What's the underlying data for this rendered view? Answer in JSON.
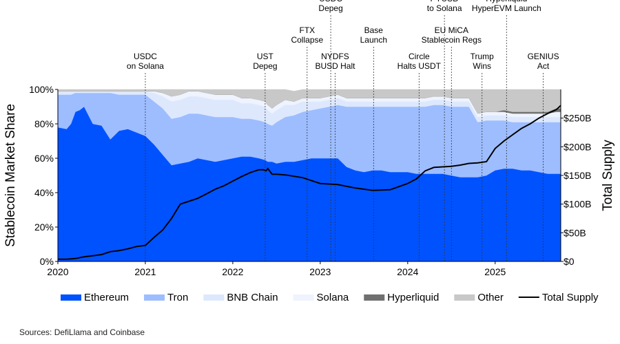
{
  "source": "Sources: DefiLlama and Coinbase",
  "chart_data": {
    "type": "area",
    "xlabel": "",
    "ylabel": "Stablecoin Market Share",
    "y2label": "Total Supply",
    "xlim": [
      2020.0,
      2025.75
    ],
    "ylim": [
      0,
      100
    ],
    "y2lim": [
      0,
      300
    ],
    "x_ticks": [
      "2020",
      "2021",
      "2022",
      "2023",
      "2024",
      "2025"
    ],
    "y_ticks": [
      "0%",
      "20%",
      "40%",
      "60%",
      "80%",
      "100%"
    ],
    "y2_ticks": [
      "$0",
      "$50B",
      "$100B",
      "$150B",
      "$200B",
      "$250B"
    ],
    "y2_tick_values": [
      0,
      50,
      100,
      150,
      200,
      250
    ],
    "x": [
      2020.0,
      2020.1,
      2020.15,
      2020.2,
      2020.25,
      2020.3,
      2020.4,
      2020.5,
      2020.6,
      2020.7,
      2020.8,
      2020.9,
      2021.0,
      2021.1,
      2021.2,
      2021.3,
      2021.4,
      2021.5,
      2021.6,
      2021.7,
      2021.8,
      2021.9,
      2022.0,
      2022.1,
      2022.2,
      2022.3,
      2022.37,
      2022.4,
      2022.45,
      2022.5,
      2022.6,
      2022.7,
      2022.8,
      2022.9,
      2023.0,
      2023.1,
      2023.2,
      2023.3,
      2023.4,
      2023.5,
      2023.6,
      2023.7,
      2023.8,
      2023.9,
      2024.0,
      2024.1,
      2024.2,
      2024.3,
      2024.4,
      2024.5,
      2024.6,
      2024.7,
      2024.8,
      2024.9,
      2025.0,
      2025.1,
      2025.2,
      2025.3,
      2025.4,
      2025.5,
      2025.6,
      2025.7,
      2025.75
    ],
    "series": [
      {
        "name": "Ethereum",
        "color": "#0052ff",
        "values": [
          78,
          77,
          80,
          87,
          88,
          90,
          80,
          79,
          71,
          76,
          77,
          75,
          73,
          68,
          62,
          56,
          57,
          58,
          60,
          59,
          58,
          59,
          60,
          61,
          61,
          60,
          59,
          58,
          58,
          57,
          58,
          58,
          59,
          60,
          60,
          60,
          60,
          55,
          53,
          52,
          53,
          53,
          52,
          52,
          52,
          51,
          51,
          51,
          51,
          50,
          49,
          49,
          49,
          50,
          53,
          54,
          54,
          53,
          53,
          52,
          51,
          51,
          51
        ]
      },
      {
        "name": "Tron",
        "color": "#9dbdff",
        "values": [
          19,
          20,
          17,
          11,
          10,
          8,
          18,
          19,
          27,
          21,
          20,
          22,
          24,
          25,
          27,
          27,
          27,
          28,
          26,
          26,
          26,
          25,
          24,
          22,
          22,
          22,
          22,
          22,
          21,
          24,
          26,
          27,
          28,
          28,
          29,
          30,
          31,
          35,
          37,
          38,
          37,
          37,
          38,
          38,
          38,
          39,
          39,
          40,
          40,
          40,
          41,
          41,
          32,
          32,
          29,
          28,
          27,
          28,
          28,
          29,
          30,
          30,
          30
        ]
      },
      {
        "name": "BNB Chain",
        "color": "#dde8fd",
        "values": [
          2,
          2,
          2,
          1,
          1,
          1,
          1,
          1,
          1,
          2,
          2,
          2,
          2,
          5,
          7,
          10,
          10,
          10,
          10,
          10,
          10,
          10,
          10,
          9,
          9,
          9,
          9,
          8,
          7,
          7,
          7,
          6,
          6,
          5,
          4,
          4,
          4,
          3,
          3,
          3,
          3,
          3,
          3,
          3,
          3,
          3,
          3,
          3,
          3,
          3,
          3,
          3,
          3,
          3,
          3,
          3,
          3,
          3,
          3,
          3,
          3,
          3,
          3
        ]
      },
      {
        "name": "Solana",
        "color": "#eef3fe",
        "values": [
          0,
          0,
          0,
          0,
          0,
          0,
          0,
          0,
          0,
          0,
          0,
          0,
          0,
          1,
          2,
          3,
          3,
          3,
          3,
          3,
          3,
          3,
          3,
          3,
          3,
          3,
          3,
          3,
          3,
          3,
          3,
          2,
          2,
          2,
          2,
          2,
          2,
          2,
          2,
          2,
          2,
          2,
          2,
          2,
          2,
          2,
          2,
          2,
          2,
          2,
          2,
          2,
          2,
          2,
          2,
          2,
          2,
          2,
          2,
          2,
          2,
          3,
          3
        ]
      },
      {
        "name": "Hyperliquid",
        "color": "#707070",
        "values": [
          0,
          0,
          0,
          0,
          0,
          0,
          0,
          0,
          0,
          0,
          0,
          0,
          0,
          0,
          0,
          0,
          0,
          0,
          0,
          0,
          0,
          0,
          0,
          0,
          0,
          0,
          0,
          0,
          0,
          0,
          0,
          0,
          0,
          0,
          0,
          0,
          0,
          0,
          0,
          0,
          0,
          0,
          0,
          0,
          0,
          0,
          0,
          0,
          0,
          0,
          0,
          0,
          0,
          0,
          0,
          1,
          1,
          1,
          1,
          1,
          1,
          2,
          2
        ]
      },
      {
        "name": "Other",
        "color": "#c8c8c8",
        "values": [
          1,
          1,
          1,
          1,
          1,
          1,
          1,
          1,
          1,
          1,
          1,
          1,
          1,
          1,
          2,
          4,
          3,
          1,
          1,
          2,
          3,
          3,
          3,
          5,
          5,
          6,
          7,
          9,
          11,
          9,
          6,
          6,
          5,
          5,
          5,
          4,
          3,
          5,
          5,
          5,
          5,
          5,
          5,
          5,
          5,
          5,
          5,
          4,
          4,
          5,
          5,
          5,
          14,
          13,
          13,
          12,
          13,
          13,
          13,
          13,
          13,
          11,
          11
        ]
      }
    ],
    "total_supply": {
      "name": "Total Supply",
      "color": "#000000",
      "x": [
        2020.0,
        2020.1,
        2020.2,
        2020.3,
        2020.4,
        2020.5,
        2020.6,
        2020.7,
        2020.8,
        2020.9,
        2021.0,
        2021.1,
        2021.2,
        2021.3,
        2021.4,
        2021.5,
        2021.6,
        2021.7,
        2021.8,
        2021.9,
        2022.0,
        2022.1,
        2022.2,
        2022.3,
        2022.35,
        2022.38,
        2022.4,
        2022.45,
        2022.5,
        2022.6,
        2022.8,
        2023.0,
        2023.2,
        2023.4,
        2023.6,
        2023.8,
        2024.0,
        2024.1,
        2024.2,
        2024.3,
        2024.4,
        2024.5,
        2024.6,
        2024.7,
        2024.8,
        2024.9,
        2025.0,
        2025.1,
        2025.2,
        2025.3,
        2025.4,
        2025.5,
        2025.6,
        2025.7,
        2025.75
      ],
      "values": [
        4,
        4,
        5,
        8,
        10,
        12,
        17,
        19,
        22,
        26,
        28,
        42,
        55,
        75,
        100,
        105,
        110,
        118,
        126,
        132,
        140,
        148,
        155,
        160,
        160,
        158,
        162,
        152,
        152,
        151,
        146,
        136,
        134,
        128,
        124,
        125,
        136,
        144,
        158,
        164,
        165,
        166,
        168,
        171,
        172,
        174,
        197,
        210,
        221,
        232,
        240,
        250,
        258,
        265,
        272
      ]
    },
    "events": [
      {
        "x": 2021.0,
        "label": [
          "USDC",
          "on Solana"
        ]
      },
      {
        "x": 2022.37,
        "label": [
          "UST",
          "Depeg"
        ]
      },
      {
        "x": 2022.85,
        "label": [
          "FTX",
          "Collapse"
        ]
      },
      {
        "x": 2023.12,
        "label": [
          "USDC",
          "Depeg"
        ]
      },
      {
        "x": 2023.17,
        "label": [
          "NYDFS",
          "BUSD Halt"
        ]
      },
      {
        "x": 2023.61,
        "label": [
          "Base",
          "Launch"
        ]
      },
      {
        "x": 2024.13,
        "label": [
          "Circle",
          "Halts USDT"
        ]
      },
      {
        "x": 2024.42,
        "label": [
          "PYUSD",
          "to Solana"
        ]
      },
      {
        "x": 2024.5,
        "label": [
          "EU MiCA",
          "Stablecoin Regs"
        ]
      },
      {
        "x": 2024.85,
        "label": [
          "Trump",
          "Wins"
        ]
      },
      {
        "x": 2025.13,
        "label": [
          "Hyperliquid",
          "HyperEVM Launch"
        ]
      },
      {
        "x": 2025.55,
        "label": [
          "GENIUS",
          "Act"
        ]
      }
    ],
    "legend": {
      "placement": "bottom",
      "items": [
        "Ethereum",
        "Tron",
        "BNB Chain",
        "Solana",
        "Hyperliquid",
        "Other",
        "Total Supply"
      ]
    }
  }
}
